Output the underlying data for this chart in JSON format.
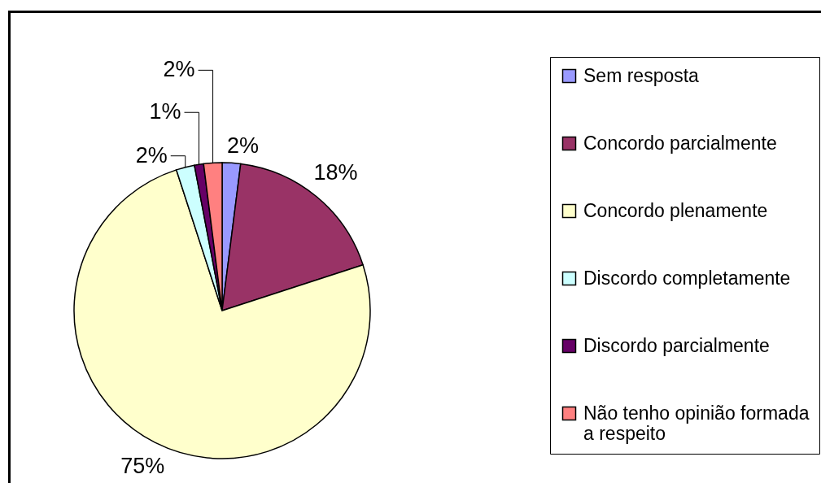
{
  "chart_data": {
    "type": "pie",
    "categories": [
      "Sem resposta",
      "Concordo parcialmente",
      "Concordo plenamente",
      "Discordo completamente",
      "Discordo parcialmente",
      "Não tenho opinião formada a respeito"
    ],
    "values": [
      2,
      18,
      75,
      2,
      1,
      2
    ],
    "colors": [
      "#9999ff",
      "#993366",
      "#ffffcc",
      "#ccffff",
      "#660066",
      "#ff8080"
    ],
    "value_labels": [
      "2%",
      "18%",
      "75%",
      "2%",
      "1%",
      "2%"
    ],
    "legend": "right"
  }
}
